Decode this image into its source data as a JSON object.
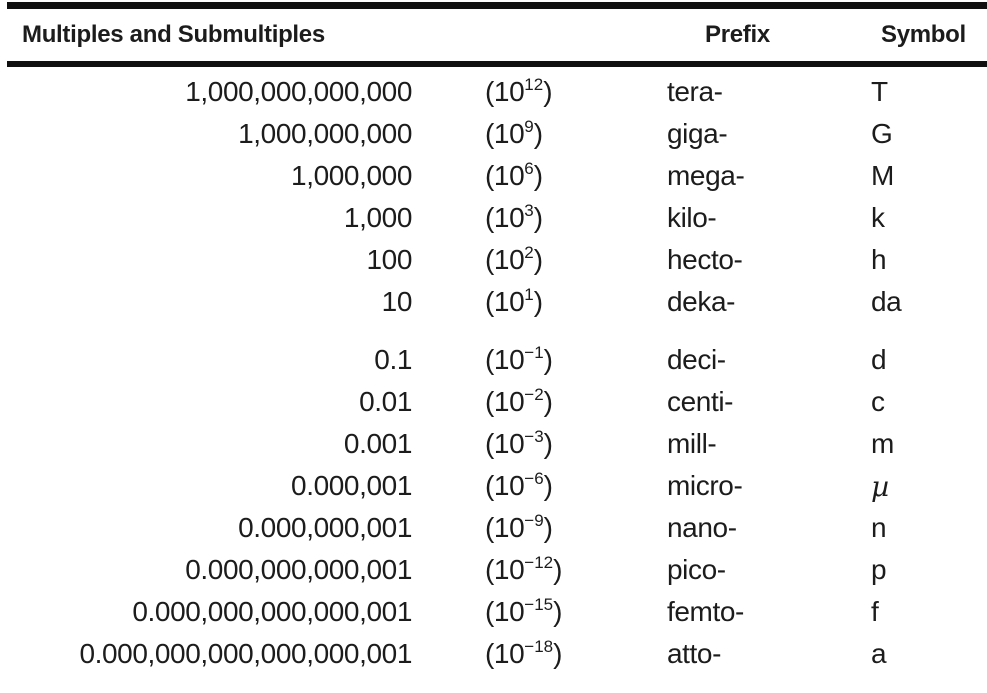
{
  "table": {
    "headers": {
      "multiples": "Multiples and Submultiples",
      "prefix": "Prefix",
      "symbol": "Symbol"
    },
    "power_open": "(10",
    "power_close": ")",
    "groups": [
      {
        "name": "multiples-group",
        "rows": [
          {
            "value": "1,000,000,000,000",
            "exponent": "12",
            "prefix": "tera-",
            "symbol": "T"
          },
          {
            "value": "1,000,000,000",
            "exponent": "9",
            "prefix": "giga-",
            "symbol": "G"
          },
          {
            "value": "1,000,000",
            "exponent": "6",
            "prefix": "mega-",
            "symbol": "M"
          },
          {
            "value": "1,000",
            "exponent": "3",
            "prefix": "kilo-",
            "symbol": "k"
          },
          {
            "value": "100",
            "exponent": "2",
            "prefix": "hecto-",
            "symbol": "h"
          },
          {
            "value": "10",
            "exponent": "1",
            "prefix": "deka-",
            "symbol": "da"
          }
        ]
      },
      {
        "name": "submultiples-group",
        "rows": [
          {
            "value": "0.1",
            "exponent": "−1",
            "prefix": "deci-",
            "symbol": "d"
          },
          {
            "value": "0.01",
            "exponent": "−2",
            "prefix": "centi-",
            "symbol": "c"
          },
          {
            "value": "0.001",
            "exponent": "−3",
            "prefix": "mill-",
            "symbol": "m"
          },
          {
            "value": "0.000,001",
            "exponent": "−6",
            "prefix": "micro-",
            "symbol": "µ"
          },
          {
            "value": "0.000,000,001",
            "exponent": "−9",
            "prefix": "nano-",
            "symbol": "n"
          },
          {
            "value": "0.000,000,000,001",
            "exponent": "−12",
            "prefix": "pico-",
            "symbol": "p"
          },
          {
            "value": "0.000,000,000,000,001",
            "exponent": "−15",
            "prefix": "femto-",
            "symbol": "f"
          },
          {
            "value": "0.000,000,000,000,000,001",
            "exponent": "−18",
            "prefix": "atto-",
            "symbol": "a"
          }
        ]
      }
    ]
  },
  "colors": {
    "text": "#1c1c1c",
    "rule": "#101010",
    "background": "#ffffff"
  }
}
